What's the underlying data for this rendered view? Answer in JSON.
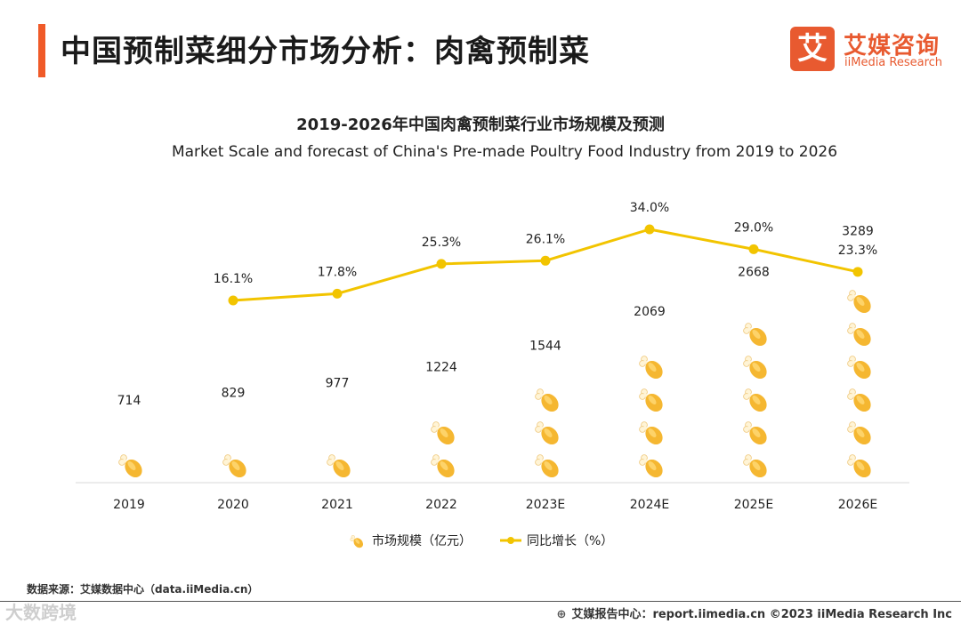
{
  "header": {
    "title": "中国预制菜细分市场分析：肉禽预制菜"
  },
  "logo": {
    "mark": "艾",
    "name_cn": "艾媒咨询",
    "name_en": "iiMedia Research"
  },
  "chart_data": {
    "type": "bar",
    "title": "2019-2026年中国肉禽预制菜行业市场规模及预测",
    "subtitle": "Market Scale and forecast of China's Pre-made Poultry Food Industry from 2019 to 2026",
    "categories": [
      "2019",
      "2020",
      "2021",
      "2022",
      "2023E",
      "2024E",
      "2025E",
      "2026E"
    ],
    "series": [
      {
        "name": "市场规模（亿元）",
        "type": "pictorial-bar",
        "icon": "chicken-drumstick-icon",
        "values": [
          714,
          829,
          977,
          1224,
          1544,
          2069,
          2668,
          3289
        ],
        "labels": [
          "714",
          "829",
          "977",
          "1224",
          "1544",
          "2069",
          "2668",
          "3289"
        ],
        "color": "#f5b731"
      },
      {
        "name": "同比增长（%）",
        "type": "line",
        "values": [
          null,
          16.1,
          17.8,
          25.3,
          26.1,
          34.0,
          29.0,
          23.3
        ],
        "labels": [
          "",
          "16.1%",
          "17.8%",
          "25.3%",
          "26.1%",
          "34.0%",
          "29.0%",
          "23.3%"
        ],
        "color": "#f2c400"
      }
    ],
    "legend_position": "bottom",
    "grid": false
  },
  "footer": {
    "source": "数据来源：艾媒数据中心（data.iiMedia.cn）",
    "right": "艾媒报告中心：report.iimedia.cn   ©2023  iiMedia Research  Inc",
    "watermark": "大数跨境"
  },
  "colors": {
    "accent": "#f05a28",
    "brand": "#e85a30",
    "line": "#f2c400",
    "drumstick": "#f5b731"
  }
}
